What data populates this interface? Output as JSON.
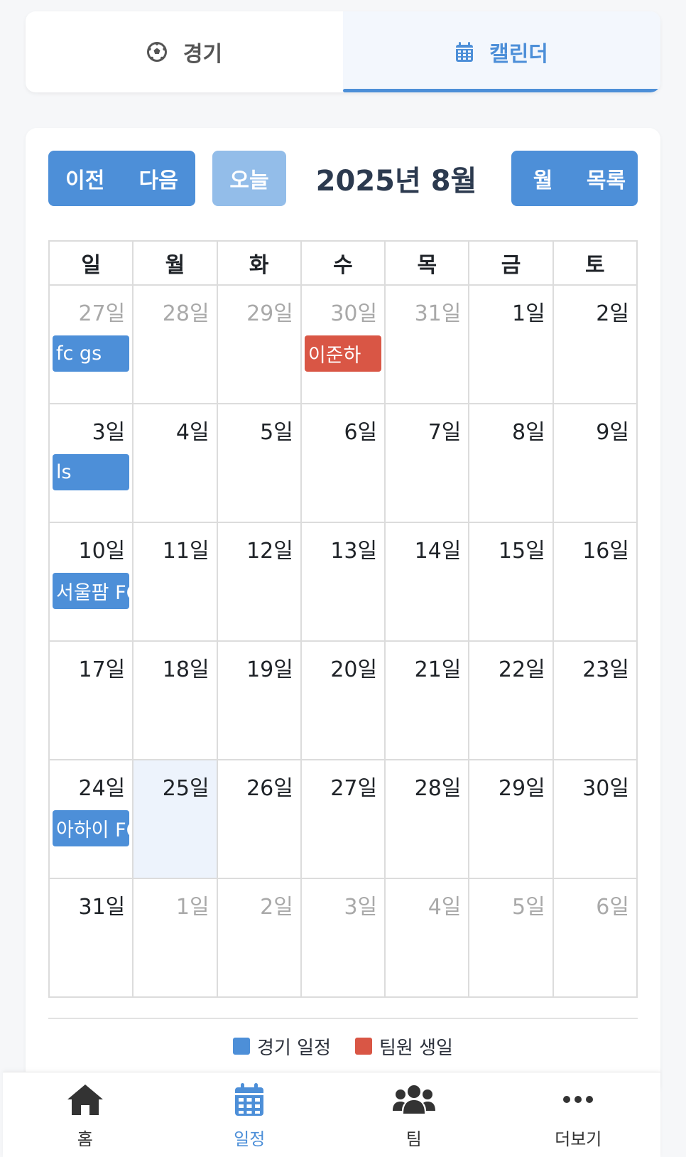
{
  "top_tabs": [
    {
      "label": "경기",
      "icon": "soccer-ball-icon",
      "active": false
    },
    {
      "label": "캘린더",
      "icon": "calendar-icon",
      "active": true
    }
  ],
  "toolbar": {
    "prev_label": "이전",
    "next_label": "다음",
    "today_label": "오늘",
    "title": "2025년 8월",
    "month_view_label": "월",
    "list_view_label": "목록"
  },
  "weekdays": [
    "일",
    "월",
    "화",
    "수",
    "목",
    "금",
    "토"
  ],
  "weeks": [
    [
      {
        "day": "27일",
        "other": true,
        "event": {
          "text": "fc gs",
          "type": "match"
        }
      },
      {
        "day": "28일",
        "other": true
      },
      {
        "day": "29일",
        "other": true
      },
      {
        "day": "30일",
        "other": true,
        "event": {
          "text": "이준하",
          "type": "birthday"
        }
      },
      {
        "day": "31일",
        "other": true
      },
      {
        "day": "1일"
      },
      {
        "day": "2일"
      }
    ],
    [
      {
        "day": "3일",
        "event": {
          "text": "ls",
          "type": "match"
        }
      },
      {
        "day": "4일"
      },
      {
        "day": "5일"
      },
      {
        "day": "6일"
      },
      {
        "day": "7일"
      },
      {
        "day": "8일"
      },
      {
        "day": "9일"
      }
    ],
    [
      {
        "day": "10일",
        "event": {
          "text": "서울팜 FC",
          "type": "match"
        }
      },
      {
        "day": "11일"
      },
      {
        "day": "12일"
      },
      {
        "day": "13일"
      },
      {
        "day": "14일"
      },
      {
        "day": "15일"
      },
      {
        "day": "16일"
      }
    ],
    [
      {
        "day": "17일"
      },
      {
        "day": "18일"
      },
      {
        "day": "19일"
      },
      {
        "day": "20일"
      },
      {
        "day": "21일"
      },
      {
        "day": "22일"
      },
      {
        "day": "23일"
      }
    ],
    [
      {
        "day": "24일",
        "event": {
          "text": "아하이 FC",
          "type": "match"
        }
      },
      {
        "day": "25일",
        "today": true
      },
      {
        "day": "26일"
      },
      {
        "day": "27일"
      },
      {
        "day": "28일"
      },
      {
        "day": "29일"
      },
      {
        "day": "30일"
      }
    ],
    [
      {
        "day": "31일"
      },
      {
        "day": "1일",
        "other": true
      },
      {
        "day": "2일",
        "other": true
      },
      {
        "day": "3일",
        "other": true
      },
      {
        "day": "4일",
        "other": true
      },
      {
        "day": "5일",
        "other": true
      },
      {
        "day": "6일",
        "other": true
      }
    ]
  ],
  "legend": {
    "match_label": "경기 일정",
    "match_color": "#4d8fd8",
    "birthday_label": "팀원 생일",
    "birthday_color": "#d95645"
  },
  "bottom_nav": [
    {
      "label": "홈",
      "icon": "home-icon",
      "active": false
    },
    {
      "label": "일정",
      "icon": "calendar-icon",
      "active": true
    },
    {
      "label": "팀",
      "icon": "team-users-icon",
      "active": false
    },
    {
      "label": "더보기",
      "icon": "more-dots-icon",
      "active": false
    }
  ]
}
